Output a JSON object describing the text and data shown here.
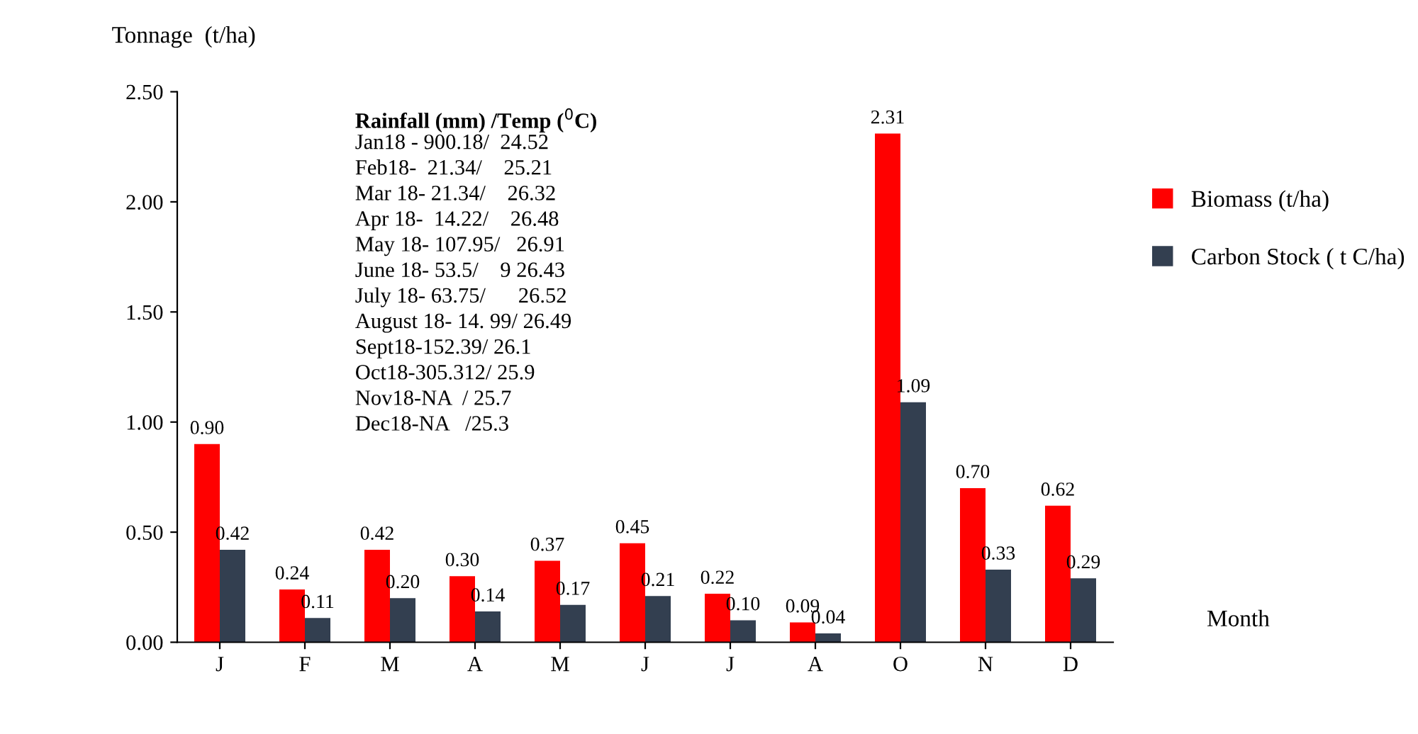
{
  "chart_data": {
    "type": "bar",
    "ylabel": "Tonnage  (t/ha)",
    "xlabel": "Month",
    "categories": [
      "J",
      "F",
      "M",
      "A",
      "M",
      "J",
      "J",
      "A",
      "O",
      "N",
      "D"
    ],
    "series": [
      {
        "name": "Biomass (t/ha)",
        "color": "#ff0000",
        "values": [
          0.9,
          0.24,
          0.42,
          0.3,
          0.37,
          0.45,
          0.22,
          0.09,
          2.31,
          0.7,
          0.62
        ],
        "value_labels": [
          "0.90",
          "0.24",
          "0.42",
          "0.30",
          "0.37",
          "0.45",
          "0.22",
          "0.09",
          "2.31",
          "0.70",
          "0.62"
        ]
      },
      {
        "name": "Carbon Stock ( t C/ha)",
        "color": "#333f50",
        "values": [
          0.42,
          0.11,
          0.2,
          0.14,
          0.17,
          0.21,
          0.1,
          0.04,
          1.09,
          0.33,
          0.29
        ],
        "value_labels": [
          "0.42",
          "0.11",
          "0.20",
          "0.14",
          "0.17",
          "0.21",
          "0.10",
          "0.04",
          "1.09",
          "0.33",
          "0.29"
        ]
      }
    ],
    "ylim": [
      0,
      2.5
    ],
    "yticks": [
      {
        "value": 0,
        "label": "0.00"
      },
      {
        "value": 0.5,
        "label": "0.50"
      },
      {
        "value": 1.0,
        "label": "1.00"
      },
      {
        "value": 1.5,
        "label": "1.50"
      },
      {
        "value": 2.0,
        "label": "2.00"
      },
      {
        "value": 2.5,
        "label": "2.50"
      }
    ],
    "grid": false,
    "legend": "right",
    "annotations": [
      "Rainfall (mm) /Temp ($^{0}$C)",
      "Jan18 - 900.18/  24.52",
      "Feb18-  21.34/    25.21",
      "Mar 18- 21.34/    26.32",
      "Apr 18-  14.22/    26.48",
      "May 18- 107.95/   26.91",
      "June 18- 53.5/    9 26.43",
      "July 18- 63.75/      26.52",
      "August 18- 14. 99/ 26.49",
      "Sept18-152.39/ 26.1",
      "Oct18-305.312/ 25.9",
      "Nov18-NA  / 25.7",
      "Dec18-NA   /25.3"
    ]
  }
}
